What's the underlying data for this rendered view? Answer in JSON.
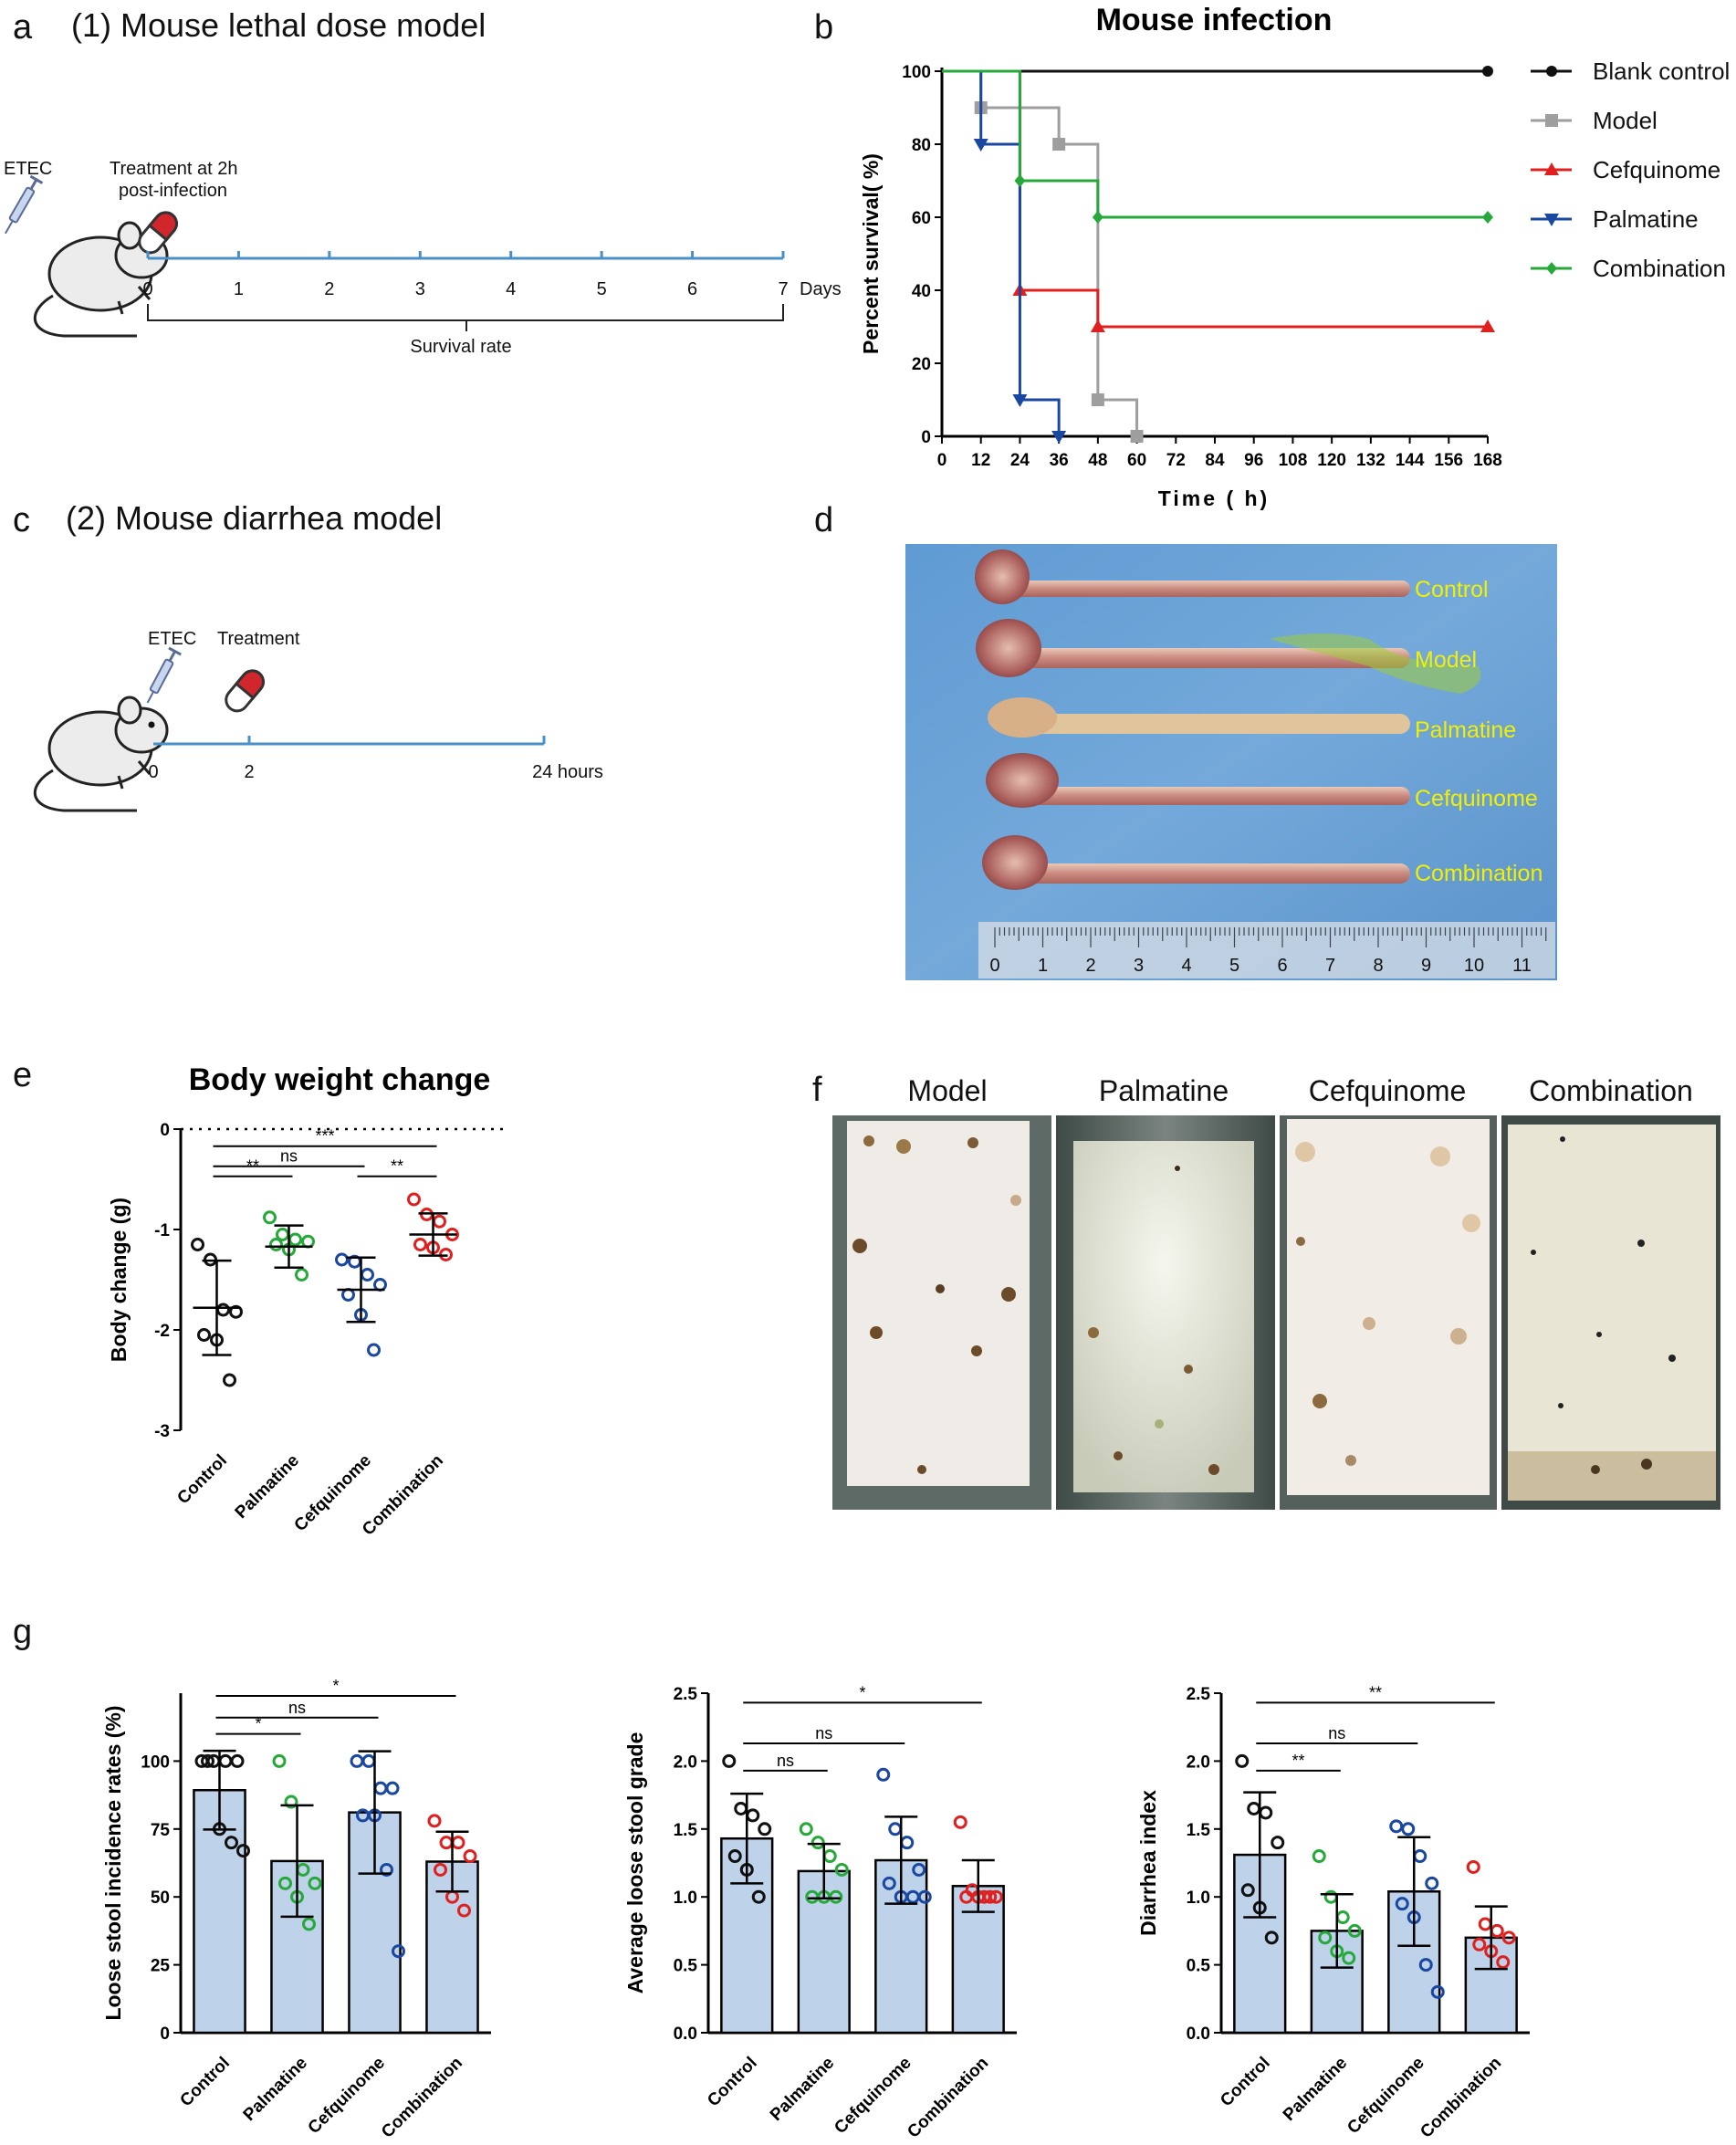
{
  "panels": {
    "a": {
      "letter": "a",
      "title": "(1) Mouse lethal dose model",
      "etec": "ETEC",
      "treatment": "Treatment at 2h post-infection",
      "treatment_lines": [
        "Treatment at 2h",
        "post-infection"
      ],
      "ticks": [
        "0",
        "1",
        "2",
        "3",
        "4",
        "5",
        "6",
        "7"
      ],
      "unit": "Days",
      "bracket_label": "Survival rate"
    },
    "b": {
      "letter": "b"
    },
    "c": {
      "letter": "c",
      "title": "(2) Mouse diarrhea model",
      "etec": "ETEC",
      "treatment": "Treatment",
      "ticks": [
        "0",
        "2"
      ],
      "end_label": "24 hours"
    },
    "d": {
      "letter": "d",
      "labels": [
        "Control",
        "Model",
        "Palmatine",
        "Cefquinome",
        "Combination"
      ],
      "ruler_ticks": [
        "0",
        "1",
        "2",
        "3",
        "4",
        "5",
        "6",
        "7",
        "8",
        "9",
        "10",
        "11"
      ]
    },
    "e": {
      "letter": "e"
    },
    "f": {
      "letter": "f",
      "labels": [
        "Model",
        "Palmatine",
        "Cefquinome",
        "Combination"
      ]
    },
    "g": {
      "letter": "g"
    }
  },
  "colors": {
    "black": "#111111",
    "gray": "#9e9e9e",
    "red": "#e0201f",
    "blue": "#1a48a0",
    "green": "#27a83a",
    "bar": "#bed3ea",
    "timeline": "#4a90c8"
  },
  "chart_data": [
    {
      "type": "line",
      "title": "Mouse infection",
      "xlabel": "Time ( h)",
      "ylabel": "Percent survival( %)",
      "xlim": [
        0,
        168
      ],
      "ylim": [
        0,
        100
      ],
      "xticks": [
        0,
        12,
        24,
        36,
        48,
        60,
        72,
        84,
        96,
        108,
        120,
        132,
        144,
        156,
        168
      ],
      "yticks": [
        0,
        20,
        40,
        60,
        80,
        100
      ],
      "legend": "right",
      "series": [
        {
          "name": "Blank control",
          "color": "#111111",
          "marker": "circle",
          "steps": [
            [
              0,
              100
            ],
            [
              168,
              100
            ]
          ],
          "markers": [
            [
              168,
              100
            ]
          ]
        },
        {
          "name": "Model",
          "color": "#9e9e9e",
          "marker": "square",
          "steps": [
            [
              0,
              100
            ],
            [
              12,
              100
            ],
            [
              12,
              90
            ],
            [
              36,
              90
            ],
            [
              36,
              80
            ],
            [
              48,
              80
            ],
            [
              48,
              10
            ],
            [
              60,
              10
            ],
            [
              60,
              0
            ]
          ],
          "markers": [
            [
              12,
              90
            ],
            [
              36,
              80
            ],
            [
              48,
              10
            ],
            [
              60,
              0
            ]
          ]
        },
        {
          "name": "Cefquinome",
          "color": "#e0201f",
          "marker": "triangle-up",
          "steps": [
            [
              0,
              100
            ],
            [
              24,
              100
            ],
            [
              24,
              40
            ],
            [
              48,
              40
            ],
            [
              48,
              30
            ],
            [
              168,
              30
            ]
          ],
          "markers": [
            [
              24,
              40
            ],
            [
              48,
              30
            ],
            [
              168,
              30
            ]
          ]
        },
        {
          "name": "Palmatine",
          "color": "#1a48a0",
          "marker": "triangle-down",
          "steps": [
            [
              0,
              100
            ],
            [
              12,
              100
            ],
            [
              12,
              80
            ],
            [
              24,
              80
            ],
            [
              24,
              10
            ],
            [
              36,
              10
            ],
            [
              36,
              0
            ]
          ],
          "markers": [
            [
              12,
              80
            ],
            [
              24,
              10
            ],
            [
              36,
              0
            ]
          ]
        },
        {
          "name": "Combination",
          "color": "#27a83a",
          "marker": "diamond",
          "steps": [
            [
              0,
              100
            ],
            [
              24,
              100
            ],
            [
              24,
              70
            ],
            [
              48,
              70
            ],
            [
              48,
              60
            ],
            [
              168,
              60
            ]
          ],
          "markers": [
            [
              24,
              70
            ],
            [
              48,
              60
            ],
            [
              168,
              60
            ]
          ]
        }
      ]
    },
    {
      "type": "scatter",
      "title": "Body weight change",
      "xlabel": "",
      "ylabel": "Body change (g)",
      "ylim": [
        -3,
        0
      ],
      "yticks": [
        0,
        -1,
        -2,
        -3
      ],
      "categories": [
        "Control",
        "Palmatine",
        "Cefquinome",
        "Combination"
      ],
      "colors": [
        "#111111",
        "#27a83a",
        "#1a48a0",
        "#e0201f"
      ],
      "points": [
        [
          -1.15,
          -1.3,
          -1.8,
          -1.82,
          -2.05,
          -2.1,
          -2.5
        ],
        [
          -0.88,
          -1.05,
          -1.1,
          -1.12,
          -1.15,
          -1.2,
          -1.45
        ],
        [
          -1.3,
          -1.32,
          -1.45,
          -1.55,
          -1.65,
          -1.85,
          -2.2
        ],
        [
          -0.7,
          -0.85,
          -0.92,
          -1.05,
          -1.15,
          -1.18,
          -1.25
        ]
      ],
      "mean": [
        -1.78,
        -1.17,
        -1.6,
        -1.05
      ],
      "sd": [
        0.47,
        0.21,
        0.32,
        0.21
      ],
      "significance": [
        {
          "from": 0,
          "to": 1,
          "label": "**",
          "y": -0.47
        },
        {
          "from": 0,
          "to": 2,
          "label": "ns",
          "y": -0.37
        },
        {
          "from": 2,
          "to": 3,
          "label": "**",
          "y": -0.47
        },
        {
          "from": 0,
          "to": 3,
          "label": "***",
          "y": -0.17
        }
      ],
      "reference_line": 0
    },
    {
      "type": "bar",
      "xlabel": "",
      "ylabel": "Loose stool incidence rates (%)",
      "ylim": [
        0,
        125
      ],
      "yticks": [
        0,
        25,
        50,
        75,
        100
      ],
      "categories": [
        "Control",
        "Palmatine",
        "Cefquinome",
        "Combination"
      ],
      "colors": [
        "#111111",
        "#27a83a",
        "#1a48a0",
        "#e0201f"
      ],
      "values": [
        89.3,
        63.2,
        81.1,
        63.0
      ],
      "sd": [
        14.5,
        20.5,
        22.5,
        11.0
      ],
      "points": [
        [
          100,
          100,
          100,
          100,
          100,
          75,
          70,
          67
        ],
        [
          100,
          85,
          60,
          55,
          55,
          50,
          40
        ],
        [
          100,
          100,
          90,
          90,
          80,
          80,
          60,
          30
        ],
        [
          78,
          70,
          70,
          65,
          60,
          50,
          45
        ]
      ],
      "significance": [
        {
          "from": 0,
          "to": 1,
          "label": "*",
          "y": 110
        },
        {
          "from": 0,
          "to": 2,
          "label": "ns",
          "y": 116
        },
        {
          "from": 0,
          "to": 3,
          "label": "*",
          "y": 124
        }
      ]
    },
    {
      "type": "bar",
      "xlabel": "",
      "ylabel": "Average loose stool grade",
      "ylim": [
        0,
        2.5
      ],
      "yticks": [
        0.0,
        0.5,
        1.0,
        1.5,
        2.0,
        2.5
      ],
      "categories": [
        "Control",
        "Palmatine",
        "Cefquinome",
        "Combination"
      ],
      "colors": [
        "#111111",
        "#27a83a",
        "#1a48a0",
        "#e0201f"
      ],
      "values": [
        1.43,
        1.19,
        1.27,
        1.08
      ],
      "sd": [
        0.33,
        0.2,
        0.32,
        0.19
      ],
      "points": [
        [
          2.0,
          1.65,
          1.6,
          1.5,
          1.3,
          1.2,
          1.0
        ],
        [
          1.5,
          1.4,
          1.3,
          1.2,
          1.0,
          1.0,
          1.0
        ],
        [
          1.9,
          1.5,
          1.4,
          1.2,
          1.1,
          1.0,
          1.0,
          1.0
        ],
        [
          1.55,
          1.05,
          1.0,
          1.0,
          1.0,
          1.0,
          1.0
        ]
      ],
      "significance": [
        {
          "from": 0,
          "to": 1,
          "label": "ns",
          "y": 1.93
        },
        {
          "from": 0,
          "to": 2,
          "label": "ns",
          "y": 2.13
        },
        {
          "from": 0,
          "to": 3,
          "label": "*",
          "y": 2.43
        }
      ]
    },
    {
      "type": "bar",
      "xlabel": "",
      "ylabel": "Diarrhea index",
      "ylim": [
        0,
        2.5
      ],
      "yticks": [
        0.0,
        0.5,
        1.0,
        1.5,
        2.0,
        2.5
      ],
      "categories": [
        "Control",
        "Palmatine",
        "Cefquinome",
        "Combination"
      ],
      "colors": [
        "#111111",
        "#27a83a",
        "#1a48a0",
        "#e0201f"
      ],
      "values": [
        1.31,
        0.75,
        1.04,
        0.7
      ],
      "sd": [
        0.46,
        0.27,
        0.4,
        0.23
      ],
      "points": [
        [
          2.0,
          1.65,
          1.62,
          1.4,
          1.05,
          0.92,
          0.7
        ],
        [
          1.3,
          1.0,
          0.85,
          0.75,
          0.7,
          0.6,
          0.55
        ],
        [
          1.52,
          1.5,
          1.3,
          1.1,
          0.95,
          0.85,
          0.5,
          0.3
        ],
        [
          1.22,
          0.8,
          0.75,
          0.7,
          0.65,
          0.6,
          0.52
        ]
      ],
      "significance": [
        {
          "from": 0,
          "to": 1,
          "label": "**",
          "y": 1.93
        },
        {
          "from": 0,
          "to": 2,
          "label": "ns",
          "y": 2.13
        },
        {
          "from": 0,
          "to": 3,
          "label": "**",
          "y": 2.43
        }
      ]
    }
  ]
}
